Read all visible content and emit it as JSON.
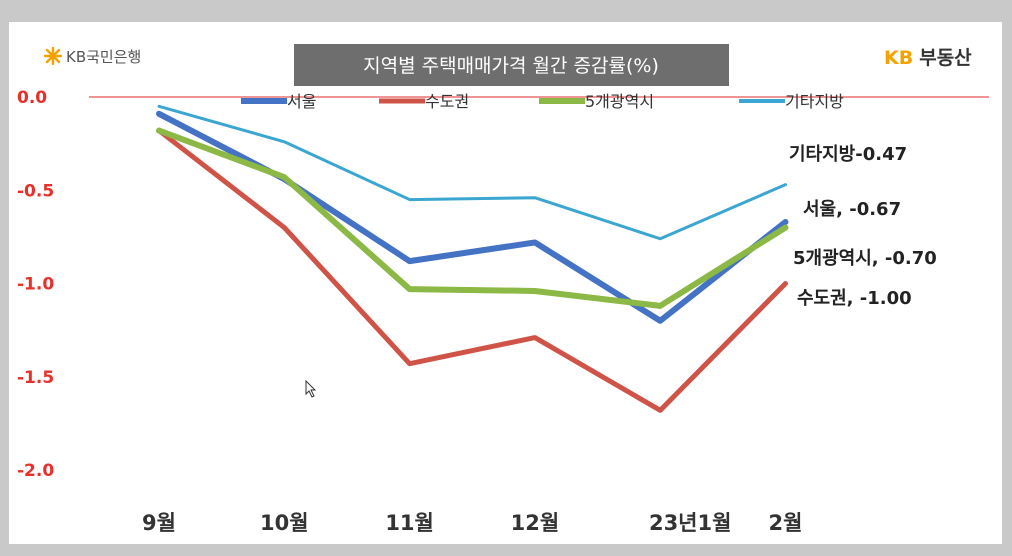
{
  "brand": {
    "left_logo": "KB국민은행",
    "right_logo_kb": "KB",
    "right_logo_text": "부동산"
  },
  "colors": {
    "ytick": "#e8302a",
    "zero_line": "#e87070",
    "title_bg": "#6e6e6e",
    "kb_yellow": "#f5a200"
  },
  "chart_data": {
    "type": "line",
    "title": "지역별 주택매매가격 월간 증감률(%)",
    "categories": [
      "9월",
      "10월",
      "11월",
      "12월",
      "23년1월",
      "2월"
    ],
    "ylim": [
      -2.0,
      0.0
    ],
    "yticks": [
      {
        "value": 0.0,
        "label": "0.0"
      },
      {
        "value": -0.5,
        "label": "-0.5"
      },
      {
        "value": -1.0,
        "label": "-1.0"
      },
      {
        "value": -1.5,
        "label": "-1.5"
      },
      {
        "value": -2.0,
        "label": "-2.0"
      }
    ],
    "grid": false,
    "legend": "top",
    "series": [
      {
        "name": "서울",
        "color": "#4472c4",
        "width": 6,
        "values": [
          -0.09,
          -0.44,
          -0.88,
          -0.78,
          -1.2,
          -0.67
        ],
        "end_label": "서울, -0.67"
      },
      {
        "name": "수도권",
        "color": "#cf5447",
        "width": 5,
        "values": [
          -0.18,
          -0.7,
          -1.43,
          -1.29,
          -1.68,
          -1.0
        ],
        "end_label": "수도권, -1.00"
      },
      {
        "name": "5개광역시",
        "color": "#8cb845",
        "width": 6,
        "values": [
          -0.18,
          -0.43,
          -1.03,
          -1.04,
          -1.12,
          -0.7
        ],
        "end_label": "5개광역시, -0.70"
      },
      {
        "name": "기타지방",
        "color": "#3aa6d1",
        "width": 3,
        "values": [
          -0.05,
          -0.24,
          -0.55,
          -0.54,
          -0.76,
          -0.47
        ],
        "end_label": "기타지방-0.47"
      }
    ]
  }
}
